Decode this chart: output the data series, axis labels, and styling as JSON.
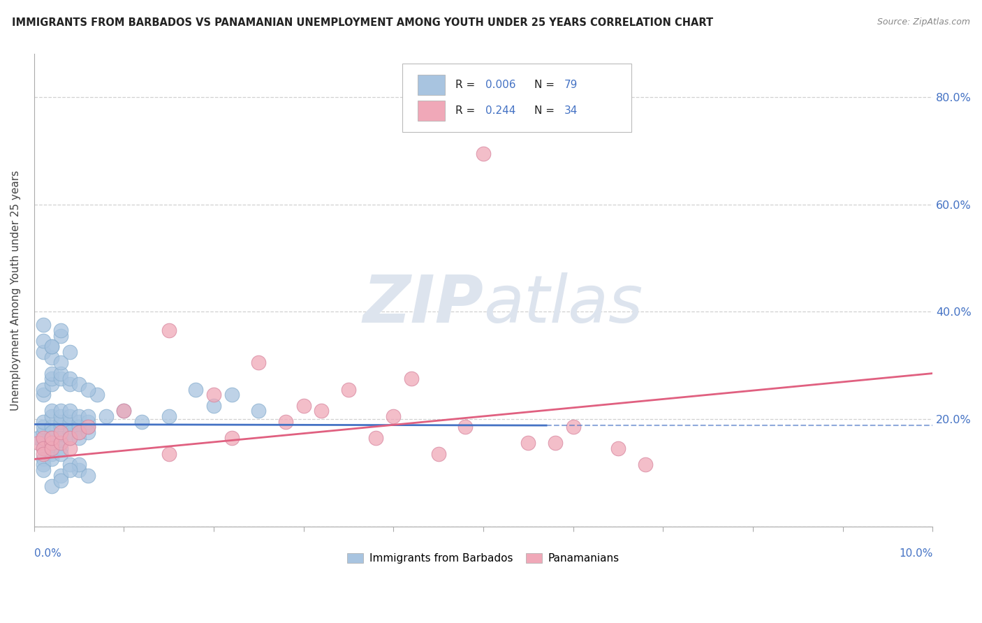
{
  "title": "IMMIGRANTS FROM BARBADOS VS PANAMANIAN UNEMPLOYMENT AMONG YOUTH UNDER 25 YEARS CORRELATION CHART",
  "source": "Source: ZipAtlas.com",
  "ylabel": "Unemployment Among Youth under 25 years",
  "right_yticks": [
    20.0,
    40.0,
    60.0,
    80.0
  ],
  "legend_blue_label": "Immigrants from Barbados",
  "legend_pink_label": "Panamanians",
  "legend_blue_r": "R = 0.006",
  "legend_blue_n": "N = 79",
  "legend_pink_r": "R = 0.244",
  "legend_pink_n": "N = 34",
  "blue_color": "#a8c4e0",
  "pink_color": "#f0a8b8",
  "blue_line_color": "#4472c4",
  "pink_line_color": "#e06080",
  "text_blue": "#4472c4",
  "text_dark": "#222222",
  "xlim": [
    0.0,
    0.1
  ],
  "ylim": [
    0.0,
    0.88
  ],
  "blue_scatter_x": [
    0.0005,
    0.001,
    0.001,
    0.001,
    0.001,
    0.001,
    0.001,
    0.001,
    0.002,
    0.002,
    0.002,
    0.002,
    0.002,
    0.002,
    0.002,
    0.002,
    0.002,
    0.003,
    0.003,
    0.003,
    0.003,
    0.003,
    0.003,
    0.003,
    0.003,
    0.004,
    0.004,
    0.004,
    0.004,
    0.004,
    0.004,
    0.005,
    0.005,
    0.005,
    0.005,
    0.005,
    0.006,
    0.006,
    0.006,
    0.006,
    0.001,
    0.001,
    0.002,
    0.002,
    0.002,
    0.003,
    0.003,
    0.004,
    0.004,
    0.005,
    0.001,
    0.002,
    0.003,
    0.002,
    0.001,
    0.003,
    0.004,
    0.002,
    0.001,
    0.003,
    0.005,
    0.004,
    0.003,
    0.001,
    0.002,
    0.003,
    0.006,
    0.015,
    0.018,
    0.02,
    0.022,
    0.025,
    0.012,
    0.01,
    0.008,
    0.007,
    0.006,
    0.005,
    0.004
  ],
  "blue_scatter_y": [
    0.165,
    0.175,
    0.185,
    0.195,
    0.155,
    0.145,
    0.125,
    0.115,
    0.185,
    0.175,
    0.165,
    0.155,
    0.145,
    0.135,
    0.125,
    0.205,
    0.215,
    0.185,
    0.195,
    0.205,
    0.215,
    0.165,
    0.155,
    0.145,
    0.135,
    0.185,
    0.195,
    0.205,
    0.215,
    0.175,
    0.165,
    0.195,
    0.185,
    0.205,
    0.175,
    0.165,
    0.195,
    0.185,
    0.205,
    0.175,
    0.245,
    0.255,
    0.265,
    0.275,
    0.285,
    0.275,
    0.285,
    0.265,
    0.275,
    0.265,
    0.325,
    0.315,
    0.305,
    0.335,
    0.345,
    0.355,
    0.325,
    0.335,
    0.375,
    0.365,
    0.105,
    0.115,
    0.095,
    0.105,
    0.075,
    0.085,
    0.095,
    0.205,
    0.255,
    0.225,
    0.245,
    0.215,
    0.195,
    0.215,
    0.205,
    0.245,
    0.255,
    0.115,
    0.105
  ],
  "pink_scatter_x": [
    0.0005,
    0.001,
    0.001,
    0.001,
    0.002,
    0.002,
    0.002,
    0.003,
    0.003,
    0.004,
    0.004,
    0.005,
    0.006,
    0.01,
    0.015,
    0.015,
    0.02,
    0.022,
    0.025,
    0.028,
    0.03,
    0.032,
    0.035,
    0.038,
    0.04,
    0.042,
    0.045,
    0.048,
    0.05,
    0.055,
    0.058,
    0.06,
    0.065,
    0.068
  ],
  "pink_scatter_y": [
    0.155,
    0.165,
    0.145,
    0.135,
    0.155,
    0.145,
    0.165,
    0.155,
    0.175,
    0.145,
    0.165,
    0.175,
    0.185,
    0.215,
    0.365,
    0.135,
    0.245,
    0.165,
    0.305,
    0.195,
    0.225,
    0.215,
    0.255,
    0.165,
    0.205,
    0.275,
    0.135,
    0.185,
    0.695,
    0.155,
    0.155,
    0.185,
    0.145,
    0.115
  ],
  "blue_line_x": [
    0.0,
    0.057
  ],
  "blue_line_y": [
    0.19,
    0.188
  ],
  "pink_line_x": [
    0.0,
    0.1
  ],
  "pink_line_y": [
    0.125,
    0.285
  ],
  "dashed_line_y": 0.188
}
